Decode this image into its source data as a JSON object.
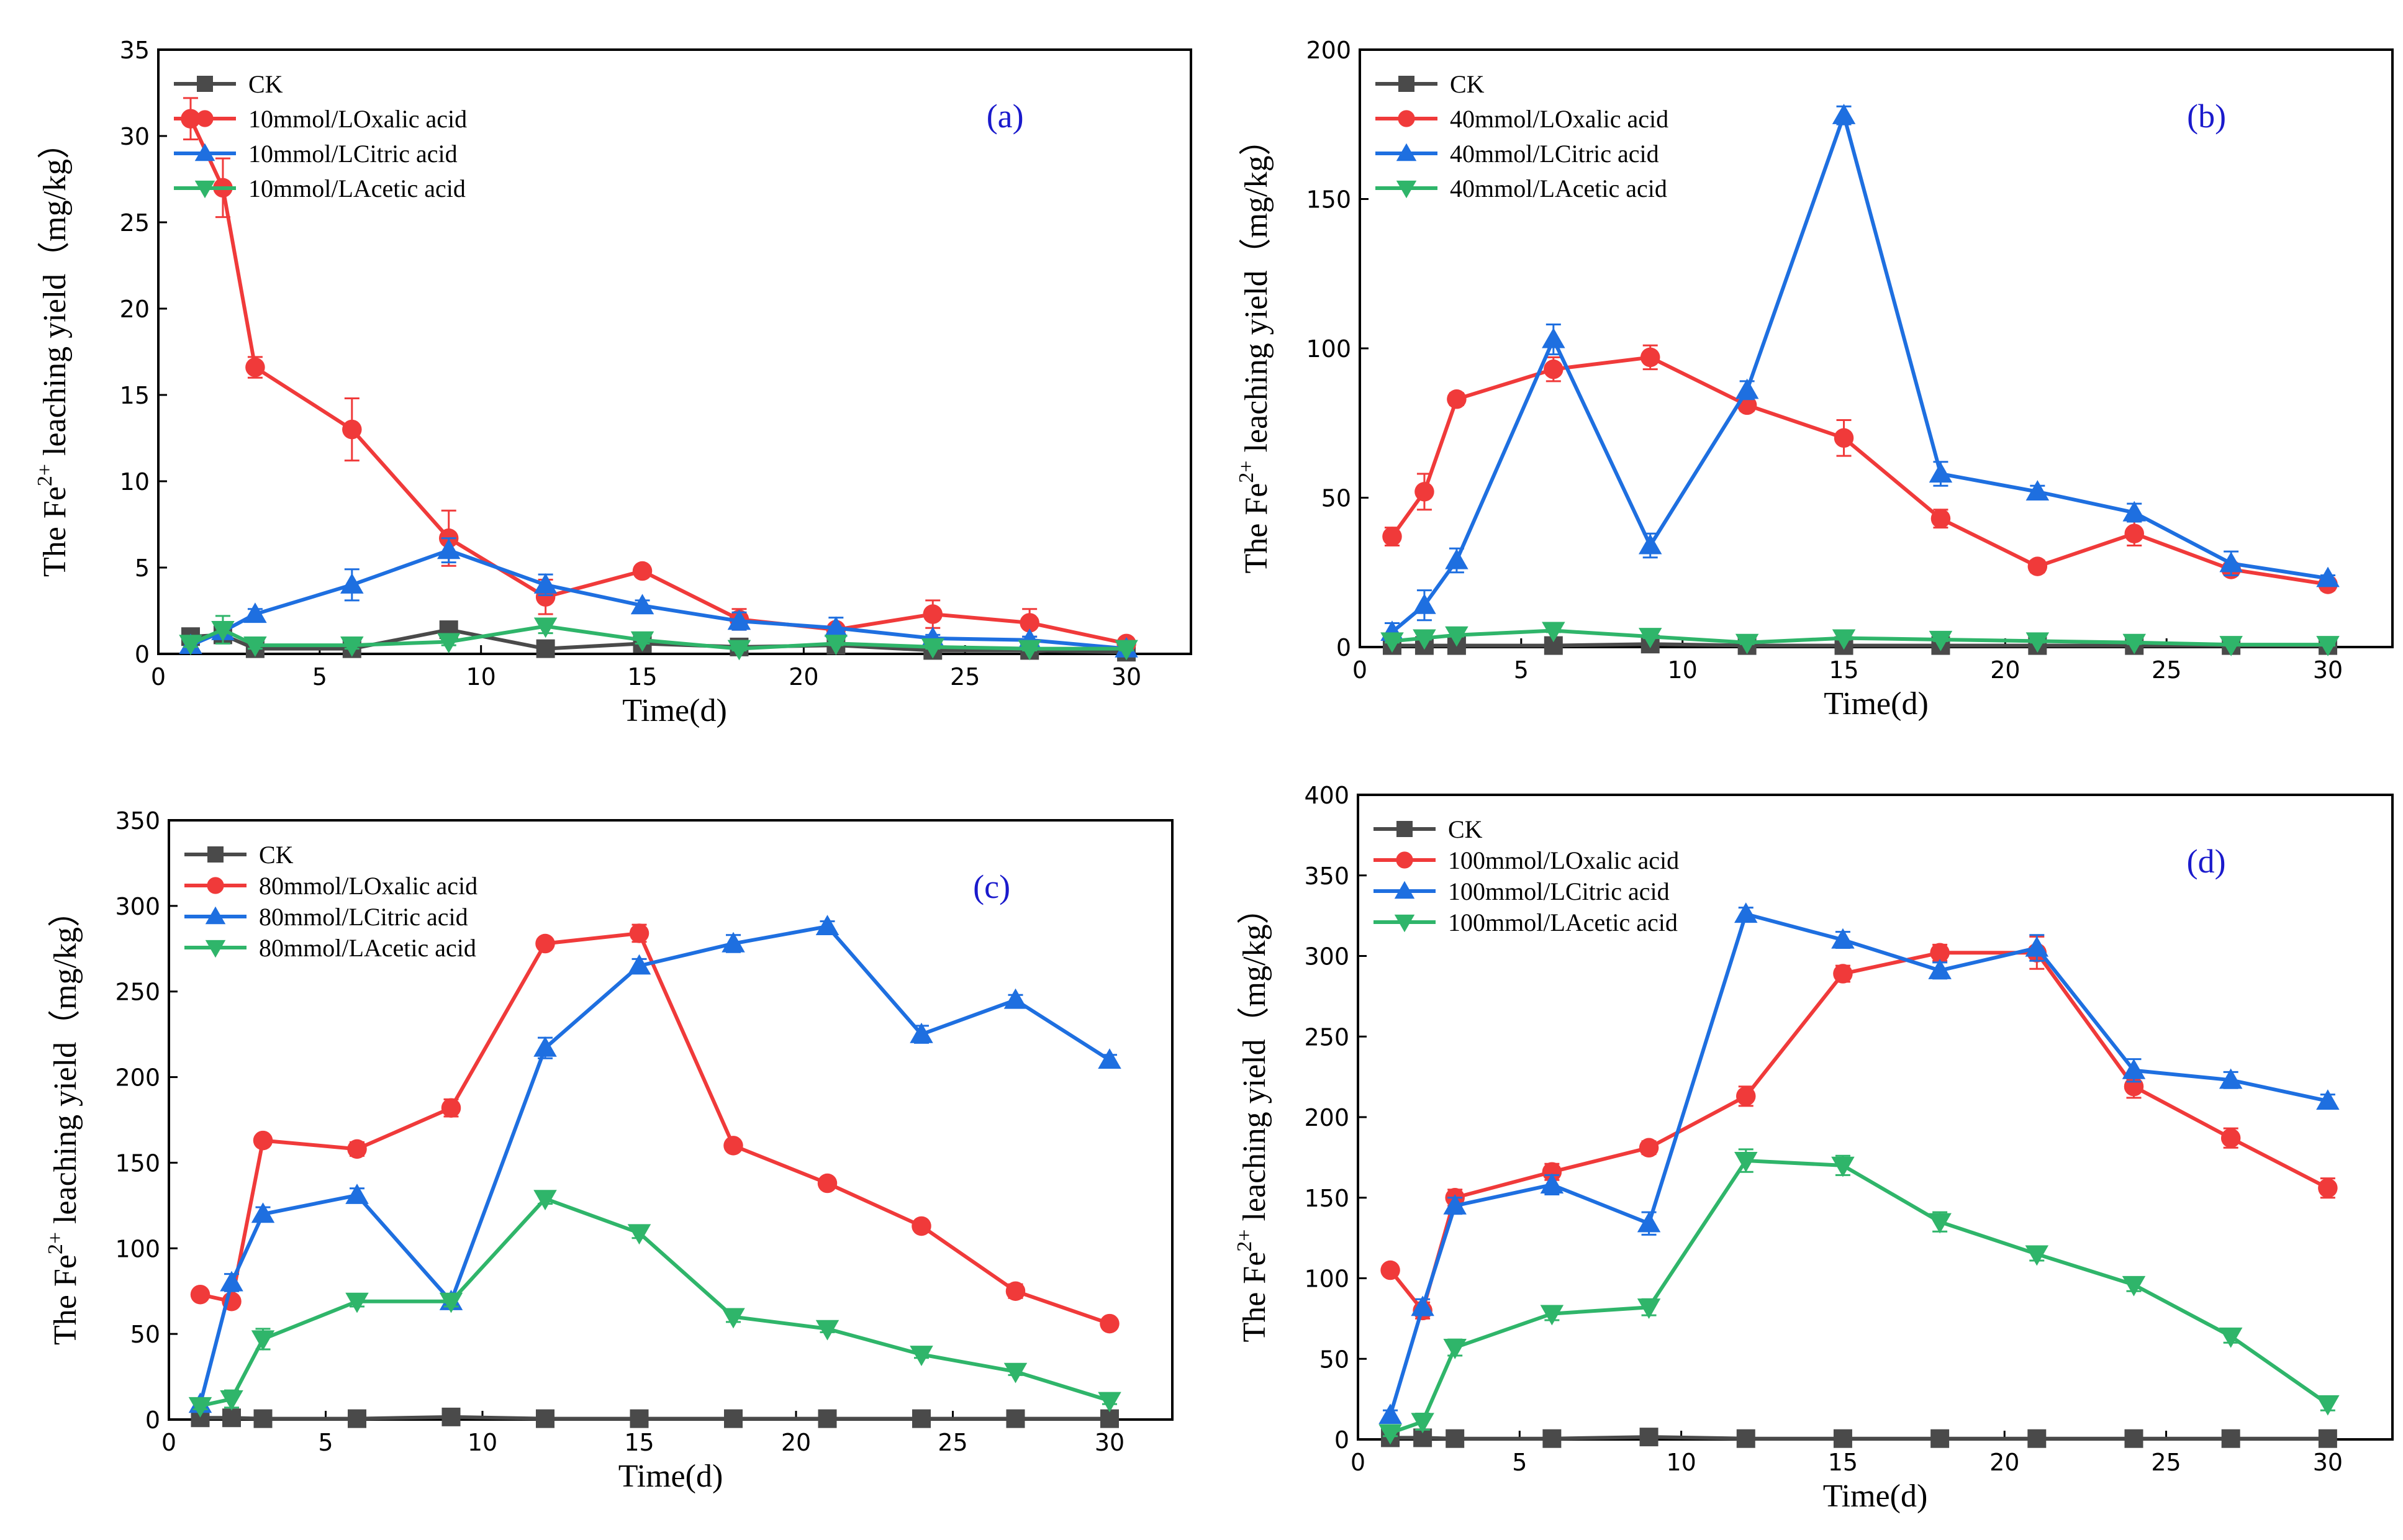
{
  "figure": {
    "background": "#ffffff"
  },
  "colors": {
    "CK": "#4a4a4a",
    "Oxalic": "#f03a3a",
    "Citric": "#1e6fe0",
    "Acetic": "#2fb56a"
  },
  "chart_data": [
    {
      "type": "line",
      "panel_label": "(a)",
      "xlabel": "Time(d)",
      "ylabel_prefix": "The Fe",
      "ylabel_sup": "2+",
      "ylabel_suffix": " leaching yield（mg/kg）",
      "xlim": [
        0,
        32
      ],
      "ylim": [
        0,
        35
      ],
      "xticks": [
        0,
        5,
        10,
        15,
        20,
        25,
        30
      ],
      "yticks": [
        0,
        5,
        10,
        15,
        20,
        25,
        30,
        35
      ],
      "x": [
        1,
        2,
        3,
        6,
        9,
        12,
        15,
        18,
        21,
        24,
        27,
        30
      ],
      "legend_position": "top-left",
      "series": [
        {
          "name": "CK",
          "marker": "square",
          "color": "#4a4a4a",
          "values": [
            1.0,
            1.1,
            0.3,
            0.3,
            1.4,
            0.3,
            0.6,
            0.4,
            0.5,
            0.2,
            0.2,
            0.1
          ],
          "errors": [
            0.3,
            0.3,
            0.1,
            0.1,
            0.3,
            0.1,
            0.1,
            0.1,
            0.1,
            0.1,
            0.1,
            0.1
          ]
        },
        {
          "name": "10mmol/LOxalic acid",
          "marker": "circle",
          "color": "#f03a3a",
          "values": [
            31.0,
            27.0,
            16.6,
            13.0,
            6.7,
            3.3,
            4.8,
            2.0,
            1.4,
            2.3,
            1.8,
            0.6
          ],
          "errors": [
            1.2,
            1.7,
            0.6,
            1.8,
            1.6,
            1.0,
            0.3,
            0.6,
            0.3,
            0.8,
            0.8,
            0.3
          ]
        },
        {
          "name": "10mmol/LCitric acid",
          "marker": "triangle-up",
          "color": "#1e6fe0",
          "values": [
            0.5,
            1.3,
            2.3,
            4.0,
            6.0,
            4.0,
            2.8,
            1.9,
            1.5,
            0.9,
            0.8,
            0.3
          ],
          "errors": [
            0.2,
            0.3,
            0.3,
            0.9,
            0.7,
            0.6,
            0.3,
            0.5,
            0.6,
            0.2,
            0.2,
            0.1
          ]
        },
        {
          "name": "10mmol/LAcetic acid",
          "marker": "triangle-down",
          "color": "#2fb56a",
          "values": [
            0.6,
            1.4,
            0.5,
            0.5,
            0.7,
            1.6,
            0.8,
            0.3,
            0.6,
            0.4,
            0.3,
            0.3
          ],
          "errors": [
            0.2,
            0.8,
            0.2,
            0.2,
            0.2,
            0.4,
            0.2,
            0.1,
            0.1,
            0.1,
            0.1,
            0.1
          ]
        }
      ]
    },
    {
      "type": "line",
      "panel_label": "(b)",
      "xlabel": "Time(d)",
      "ylabel_prefix": "The Fe",
      "ylabel_sup": "2+",
      "ylabel_suffix": " leaching yield（mg/kg）",
      "xlim": [
        0,
        32
      ],
      "ylim": [
        0,
        200
      ],
      "xticks": [
        0,
        5,
        10,
        15,
        20,
        25,
        30
      ],
      "yticks": [
        0,
        50,
        100,
        150,
        200
      ],
      "x": [
        1,
        2,
        3,
        6,
        9,
        12,
        15,
        18,
        21,
        24,
        27,
        30
      ],
      "legend_position": "top-left",
      "series": [
        {
          "name": "CK",
          "marker": "square",
          "color": "#4a4a4a",
          "values": [
            0.5,
            0.5,
            0.5,
            0.5,
            1.0,
            0.5,
            0.5,
            0.5,
            0.5,
            0.5,
            0.5,
            0.5
          ],
          "errors": [
            0.2,
            0.2,
            0.2,
            0.2,
            0.2,
            0.2,
            0.2,
            0.2,
            0.2,
            0.2,
            0.2,
            0.2
          ]
        },
        {
          "name": "40mmol/LOxalic acid",
          "marker": "circle",
          "color": "#f03a3a",
          "values": [
            37,
            52,
            83,
            93,
            97,
            81,
            70,
            43,
            27,
            38,
            26,
            21
          ],
          "errors": [
            3,
            6,
            2,
            4,
            4,
            2,
            6,
            3,
            2,
            4,
            2,
            2
          ]
        },
        {
          "name": "40mmol/LCitric acid",
          "marker": "triangle-up",
          "color": "#1e6fe0",
          "values": [
            5,
            14,
            29,
            103,
            34,
            86,
            178,
            58,
            52,
            45,
            28,
            23
          ],
          "errors": [
            3,
            5,
            4,
            5,
            4,
            3,
            3,
            4,
            2,
            3,
            4,
            1
          ]
        },
        {
          "name": "40mmol/LAcetic acid",
          "marker": "triangle-down",
          "color": "#2fb56a",
          "values": [
            2,
            3,
            4,
            5.5,
            3.5,
            1.5,
            3,
            2.5,
            2,
            1.5,
            0.8,
            0.8
          ],
          "errors": [
            0.5,
            0.5,
            0.5,
            0.5,
            0.5,
            0.5,
            0.5,
            0.5,
            0.5,
            0.5,
            0.3,
            0.3
          ]
        }
      ]
    },
    {
      "type": "line",
      "panel_label": "(c)",
      "xlabel": "Time(d)",
      "ylabel_prefix": "The Fe",
      "ylabel_sup": "2+",
      "ylabel_suffix": " leaching yield（mg/kg）",
      "xlim": [
        0,
        32
      ],
      "ylim": [
        0,
        350
      ],
      "xticks": [
        0,
        5,
        10,
        15,
        20,
        25,
        30
      ],
      "yticks": [
        0,
        50,
        100,
        150,
        200,
        250,
        300,
        350
      ],
      "x": [
        1,
        2,
        3,
        6,
        9,
        12,
        15,
        18,
        21,
        24,
        27,
        30
      ],
      "legend_position": "top-left",
      "series": [
        {
          "name": "CK",
          "marker": "square",
          "color": "#4a4a4a",
          "values": [
            1,
            1,
            0.5,
            0.5,
            1.5,
            0.5,
            0.5,
            0.5,
            0.5,
            0.5,
            0.5,
            0.5
          ],
          "errors": [
            0.3,
            0.3,
            0.3,
            0.3,
            0.3,
            0.3,
            0.3,
            0.3,
            0.3,
            0.3,
            0.3,
            0.3
          ]
        },
        {
          "name": "80mmol/LOxalic acid",
          "marker": "circle",
          "color": "#f03a3a",
          "values": [
            73,
            69,
            163,
            158,
            182,
            278,
            284,
            160,
            138,
            113,
            75,
            56
          ],
          "errors": [
            2,
            3,
            3,
            4,
            5,
            3,
            5,
            2,
            2,
            2,
            4,
            2
          ]
        },
        {
          "name": "80mmol/LCitric acid",
          "marker": "triangle-up",
          "color": "#1e6fe0",
          "values": [
            9,
            80,
            120,
            131,
            69,
            217,
            265,
            278,
            288,
            225,
            245,
            210
          ],
          "errors": [
            2,
            5,
            4,
            4,
            3,
            6,
            4,
            5,
            3,
            5,
            3,
            3
          ]
        },
        {
          "name": "80mmol/LAcetic acid",
          "marker": "triangle-down",
          "color": "#2fb56a",
          "values": [
            8,
            12,
            47,
            69,
            69,
            129,
            109,
            60,
            53,
            38,
            28,
            11
          ],
          "errors": [
            2,
            5,
            6,
            3,
            3,
            3,
            3,
            3,
            2,
            2,
            2,
            2
          ]
        }
      ]
    },
    {
      "type": "line",
      "panel_label": "(d)",
      "xlabel": "Time(d)",
      "ylabel_prefix": "The Fe",
      "ylabel_sup": "2+",
      "ylabel_suffix": " leaching yield（mg/kg）",
      "xlim": [
        0,
        32
      ],
      "ylim": [
        0,
        400
      ],
      "xticks": [
        0,
        5,
        10,
        15,
        20,
        25,
        30
      ],
      "yticks": [
        0,
        50,
        100,
        150,
        200,
        250,
        300,
        350,
        400
      ],
      "x": [
        1,
        2,
        3,
        6,
        9,
        12,
        15,
        18,
        21,
        24,
        27,
        30
      ],
      "legend_position": "top-left",
      "series": [
        {
          "name": "CK",
          "marker": "square",
          "color": "#4a4a4a",
          "values": [
            1,
            1,
            0.5,
            0.5,
            1.5,
            0.5,
            0.5,
            0.5,
            0.5,
            0.5,
            0.5,
            0.5
          ],
          "errors": [
            0.3,
            0.3,
            0.3,
            0.3,
            0.3,
            0.3,
            0.3,
            0.3,
            0.3,
            0.3,
            0.3,
            0.3
          ]
        },
        {
          "name": "100mmol/LOxalic acid",
          "marker": "circle",
          "color": "#f03a3a",
          "values": [
            105,
            80,
            150,
            166,
            181,
            213,
            289,
            302,
            302,
            219,
            187,
            156
          ],
          "errors": [
            3,
            5,
            5,
            5,
            4,
            6,
            5,
            5,
            10,
            7,
            6,
            6
          ]
        },
        {
          "name": "100mmol/LCitric acid",
          "marker": "triangle-up",
          "color": "#1e6fe0",
          "values": [
            15,
            82,
            145,
            158,
            134,
            326,
            310,
            291,
            305,
            229,
            223,
            210
          ],
          "errors": [
            3,
            5,
            5,
            6,
            7,
            4,
            5,
            5,
            8,
            7,
            5,
            4
          ]
        },
        {
          "name": "100mmol/LAcetic acid",
          "marker": "triangle-down",
          "color": "#2fb56a",
          "values": [
            4,
            11,
            57,
            78,
            82,
            173,
            170,
            135,
            115,
            96,
            64,
            22
          ],
          "errors": [
            2,
            5,
            5,
            4,
            5,
            7,
            6,
            6,
            4,
            4,
            4,
            4
          ]
        }
      ]
    }
  ]
}
